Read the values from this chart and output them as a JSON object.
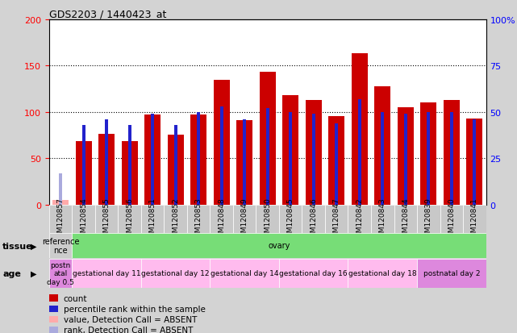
{
  "title": "GDS2203 / 1440423_at",
  "samples": [
    "GSM120857",
    "GSM120854",
    "GSM120855",
    "GSM120856",
    "GSM120851",
    "GSM120852",
    "GSM120853",
    "GSM120848",
    "GSM120849",
    "GSM120850",
    "GSM120845",
    "GSM120846",
    "GSM120847",
    "GSM120842",
    "GSM120843",
    "GSM120844",
    "GSM120839",
    "GSM120840",
    "GSM120841"
  ],
  "counts": [
    5,
    68,
    76,
    68,
    97,
    75,
    97,
    135,
    91,
    143,
    118,
    113,
    95,
    163,
    128,
    105,
    110,
    113,
    93
  ],
  "ranks": [
    17,
    43,
    46,
    43,
    49,
    43,
    50,
    53,
    46,
    52,
    50,
    49,
    44,
    57,
    50,
    49,
    50,
    50,
    46
  ],
  "absent_count_idx": [
    0
  ],
  "absent_rank_idx": [
    0
  ],
  "ylim_left": [
    0,
    200
  ],
  "ylim_right": [
    0,
    100
  ],
  "yticks_left": [
    0,
    50,
    100,
    150,
    200
  ],
  "yticks_right": [
    0,
    25,
    50,
    75,
    100
  ],
  "ytick_labels_right": [
    "0",
    "25",
    "50",
    "75",
    "100%"
  ],
  "bar_color_red": "#cc0000",
  "bar_color_pink": "#ffaaaa",
  "blue_color": "#2222cc",
  "blue_absent_color": "#aaaadd",
  "tissue_label": "tissue",
  "age_label": "age",
  "tissue_groups": [
    {
      "label": "reference\nnce",
      "start": 0,
      "end": 1,
      "color": "#cccccc"
    },
    {
      "label": "ovary",
      "start": 1,
      "end": 19,
      "color": "#77dd77"
    }
  ],
  "age_groups": [
    {
      "label": "postn\natal\nday 0.5",
      "start": 0,
      "end": 1,
      "color": "#dd88dd"
    },
    {
      "label": "gestational day 11",
      "start": 1,
      "end": 4,
      "color": "#ffbbee"
    },
    {
      "label": "gestational day 12",
      "start": 4,
      "end": 7,
      "color": "#ffbbee"
    },
    {
      "label": "gestational day 14",
      "start": 7,
      "end": 10,
      "color": "#ffbbee"
    },
    {
      "label": "gestational day 16",
      "start": 10,
      "end": 13,
      "color": "#ffbbee"
    },
    {
      "label": "gestational day 18",
      "start": 13,
      "end": 16,
      "color": "#ffbbee"
    },
    {
      "label": "postnatal day 2",
      "start": 16,
      "end": 19,
      "color": "#dd88dd"
    }
  ],
  "bg_color": "#d3d3d3",
  "plot_bg_color": "#ffffff",
  "font_size": 8,
  "bar_width": 0.7,
  "rank_bar_width": 0.15
}
